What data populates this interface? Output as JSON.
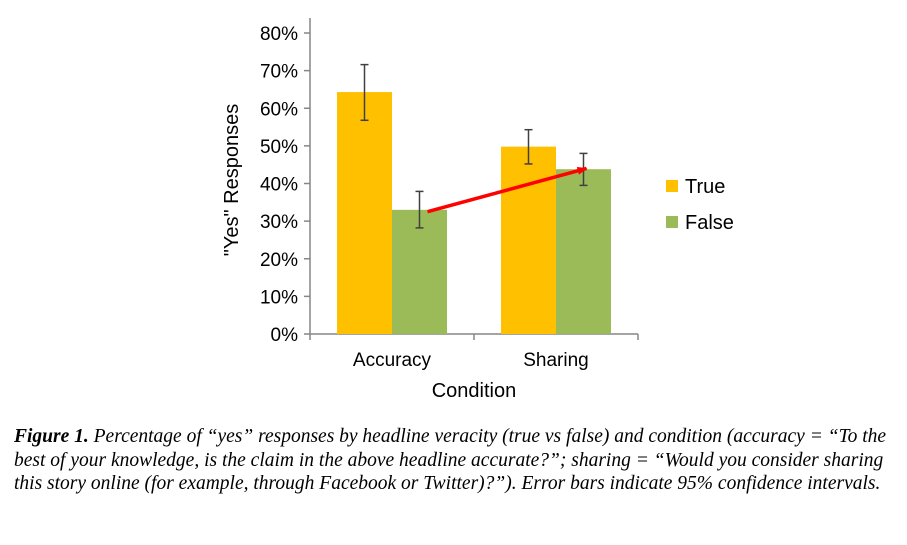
{
  "chart_data": {
    "type": "bar",
    "categories": [
      "Accuracy",
      "Sharing"
    ],
    "series": [
      {
        "name": "True",
        "color": "#FFC000",
        "values": [
          64.3,
          49.8
        ],
        "ci_low": [
          56.8,
          45.2
        ],
        "ci_high": [
          71.6,
          54.3
        ]
      },
      {
        "name": "False",
        "color": "#9BBB59",
        "values": [
          33.0,
          43.8
        ],
        "ci_low": [
          28.2,
          39.5
        ],
        "ci_high": [
          37.9,
          48.0
        ]
      }
    ],
    "xlabel": "Condition",
    "ylabel": "\"Yes\" Responses",
    "ylim": [
      0,
      80
    ],
    "yticks": [
      "0%",
      "10%",
      "20%",
      "30%",
      "40%",
      "50%",
      "60%",
      "70%",
      "80%"
    ],
    "grid": false,
    "legend_position": "right",
    "annotation": {
      "type": "arrow",
      "color": "#FF0000",
      "from": {
        "category": "Accuracy",
        "series": "False",
        "value": 32.5
      },
      "to": {
        "category": "Sharing",
        "series": "False",
        "value": 44.0
      }
    }
  },
  "caption": {
    "label": "Figure 1.",
    "text": " Percentage of “yes” responses by headline veracity (true vs false) and condition (accuracy = “To the best of your knowledge, is the claim in the above headline accurate?”; sharing = “Would you consider sharing this story online (for example, through Facebook or Twitter)?”). Error bars indicate 95% confidence intervals."
  }
}
